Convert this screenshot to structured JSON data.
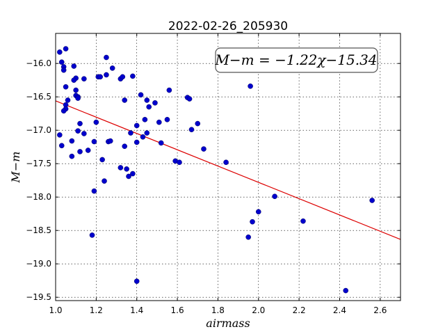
{
  "chart_data": {
    "type": "scatter",
    "title": "2022-02-26_205930",
    "xlabel": "airmass",
    "ylabel": "M−m",
    "xlim": [
      1.0,
      2.7
    ],
    "ylim": [
      -19.55,
      -15.55
    ],
    "x_ticks": [
      1.0,
      1.2,
      1.4,
      1.6,
      1.8,
      2.0,
      2.2,
      2.4,
      2.6
    ],
    "x_tick_labels": [
      "1.0",
      "1.2",
      "1.4",
      "1.6",
      "1.8",
      "2.0",
      "2.2",
      "2.4",
      "2.6"
    ],
    "y_ticks": [
      -16.0,
      -16.5,
      -17.0,
      -17.5,
      -18.0,
      -18.5,
      -19.0,
      -19.5
    ],
    "y_tick_labels": [
      "−16.0",
      "−16.5",
      "−17.0",
      "−17.5",
      "−18.0",
      "−18.5",
      "−19.0",
      "−19.5"
    ],
    "grid": true,
    "annotation": "M−m = −1.22χ−15.34",
    "fit": {
      "slope": -1.22,
      "intercept": -15.34,
      "color": "#dd0000"
    },
    "point_color": "#0000cc",
    "points": [
      [
        1.02,
        -15.83
      ],
      [
        1.05,
        -15.78
      ],
      [
        1.03,
        -15.98
      ],
      [
        1.04,
        -16.05
      ],
      [
        1.04,
        -16.1
      ],
      [
        1.09,
        -16.04
      ],
      [
        1.05,
        -16.35
      ],
      [
        1.1,
        -16.22
      ],
      [
        1.09,
        -16.25
      ],
      [
        1.1,
        -16.4
      ],
      [
        1.1,
        -16.48
      ],
      [
        1.11,
        -16.5
      ],
      [
        1.11,
        -16.52
      ],
      [
        1.06,
        -16.55
      ],
      [
        1.05,
        -16.62
      ],
      [
        1.05,
        -16.68
      ],
      [
        1.04,
        -16.71
      ],
      [
        1.02,
        -17.07
      ],
      [
        1.03,
        -17.23
      ],
      [
        1.08,
        -17.16
      ],
      [
        1.11,
        -17.01
      ],
      [
        1.12,
        -16.9
      ],
      [
        1.14,
        -17.05
      ],
      [
        1.12,
        -17.32
      ],
      [
        1.08,
        -17.39
      ],
      [
        1.16,
        -17.3
      ],
      [
        1.14,
        -16.23
      ],
      [
        1.19,
        -17.17
      ],
      [
        1.2,
        -16.88
      ],
      [
        1.21,
        -16.2
      ],
      [
        1.22,
        -16.2
      ],
      [
        1.25,
        -16.17
      ],
      [
        1.25,
        -15.91
      ],
      [
        1.28,
        -16.07
      ],
      [
        1.26,
        -17.17
      ],
      [
        1.27,
        -17.16
      ],
      [
        1.23,
        -17.44
      ],
      [
        1.24,
        -17.76
      ],
      [
        1.19,
        -17.91
      ],
      [
        1.18,
        -18.57
      ],
      [
        1.32,
        -16.23
      ],
      [
        1.33,
        -16.2
      ],
      [
        1.38,
        -16.19
      ],
      [
        1.34,
        -16.55
      ],
      [
        1.32,
        -17.56
      ],
      [
        1.35,
        -17.58
      ],
      [
        1.36,
        -17.69
      ],
      [
        1.38,
        -17.65
      ],
      [
        1.34,
        -17.24
      ],
      [
        1.37,
        -17.04
      ],
      [
        1.4,
        -16.93
      ],
      [
        1.42,
        -16.47
      ],
      [
        1.45,
        -16.55
      ],
      [
        1.46,
        -16.65
      ],
      [
        1.49,
        -16.59
      ],
      [
        1.44,
        -16.84
      ],
      [
        1.4,
        -17.18
      ],
      [
        1.43,
        -17.1
      ],
      [
        1.45,
        -17.04
      ],
      [
        1.51,
        -16.88
      ],
      [
        1.52,
        -17.19
      ],
      [
        1.55,
        -16.84
      ],
      [
        1.56,
        -16.4
      ],
      [
        1.4,
        -19.26
      ],
      [
        1.59,
        -17.46
      ],
      [
        1.61,
        -17.48
      ],
      [
        1.65,
        -16.51
      ],
      [
        1.66,
        -16.53
      ],
      [
        1.67,
        -16.99
      ],
      [
        1.7,
        -16.9
      ],
      [
        1.73,
        -17.28
      ],
      [
        1.84,
        -17.48
      ],
      [
        1.96,
        -16.34
      ],
      [
        1.95,
        -18.6
      ],
      [
        1.97,
        -18.37
      ],
      [
        2.0,
        -18.22
      ],
      [
        2.08,
        -17.99
      ],
      [
        2.22,
        -18.36
      ],
      [
        2.43,
        -19.4
      ],
      [
        2.56,
        -18.05
      ]
    ]
  }
}
